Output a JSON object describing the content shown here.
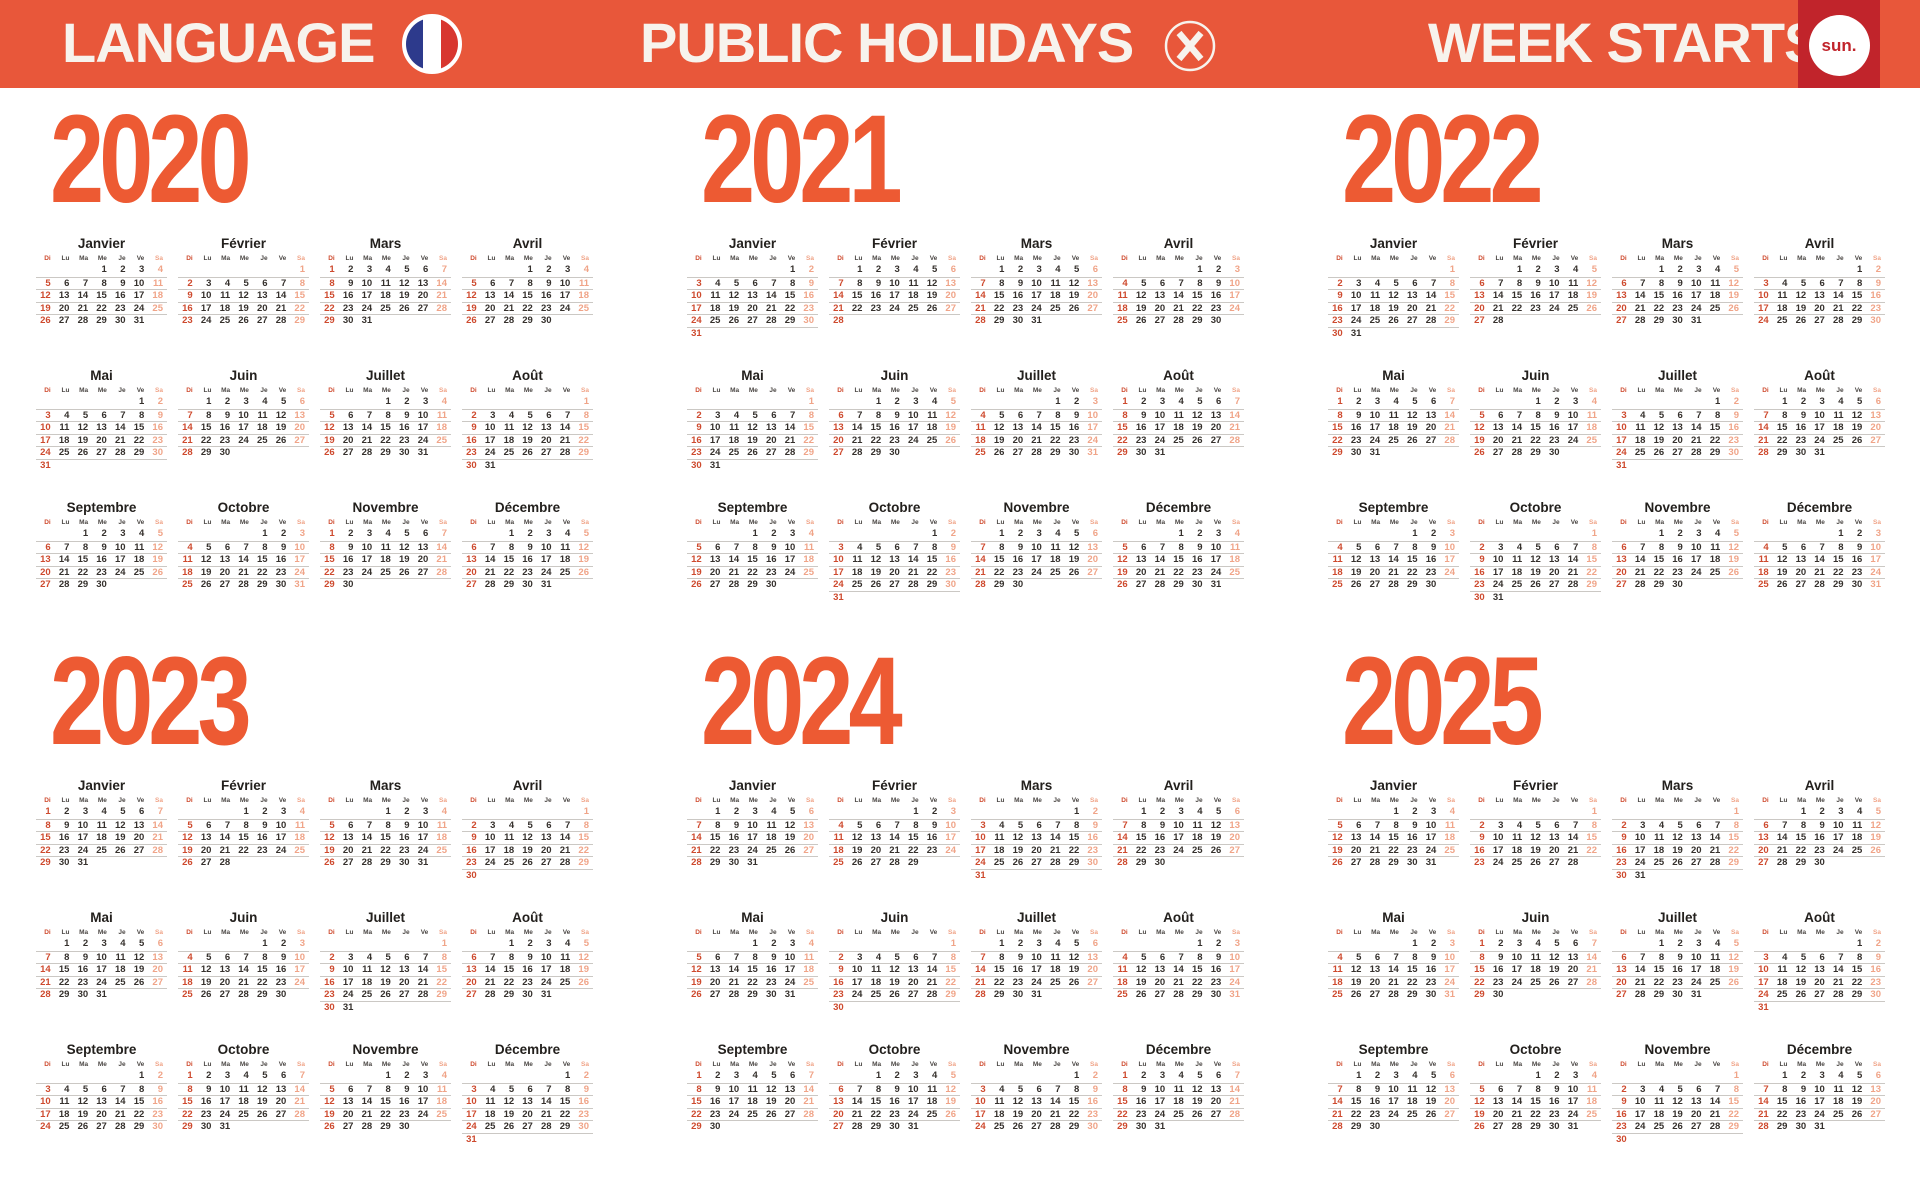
{
  "header": {
    "language_label": "LANGUAGE",
    "language_flag": "france-flag",
    "holidays_label": "PUBLIC HOLIDAYS",
    "holidays_icon": "x-circle",
    "week_starts_label": "WEEK STARTS",
    "week_starts_value": "sun."
  },
  "calendar": {
    "years": [
      2020,
      2021,
      2022,
      2023,
      2024,
      2025
    ],
    "months": [
      "Janvier",
      "Février",
      "Mars",
      "Avril",
      "Mai",
      "Juin",
      "Juillet",
      "Août",
      "Septembre",
      "Octobre",
      "Novembre",
      "Décembre"
    ],
    "day_headers": [
      "Di",
      "Lu",
      "Ma",
      "Me",
      "Je",
      "Ve",
      "Sa"
    ],
    "week_starts_on": "sunday",
    "weekend_highlight": {
      "sunday": "red",
      "saturday": "salmon"
    }
  },
  "colors": {
    "header_bar": "#E8573A",
    "header_text": "#F7F3ED",
    "year_title": "#ED5A33",
    "sunday": "#CE4A2E",
    "saturday": "#F0A488",
    "weekday_text": "#35302C",
    "grid_line": "#CBC8C4",
    "badge_red": "#C1242B",
    "flag_blue": "#2D3A8C",
    "flag_red": "#D8362F"
  }
}
